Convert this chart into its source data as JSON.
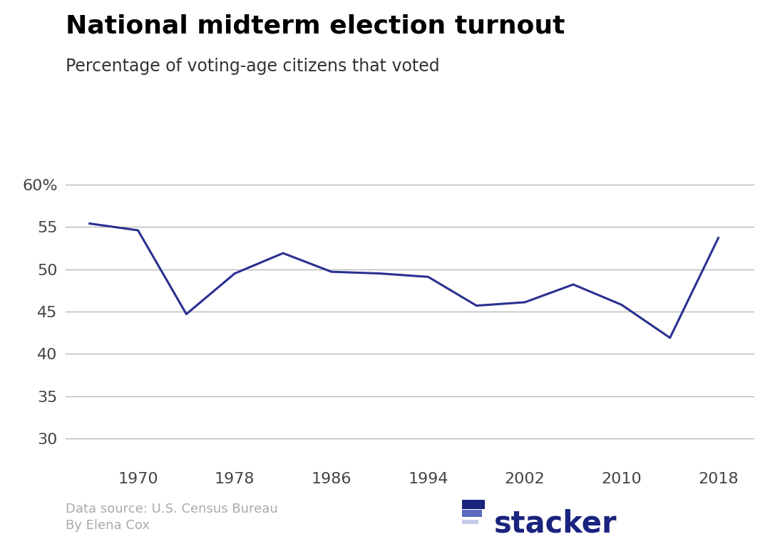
{
  "title": "National midterm election turnout",
  "subtitle": "Percentage of voting-age citizens that voted",
  "years": [
    1966,
    1970,
    1974,
    1978,
    1982,
    1986,
    1990,
    1994,
    1998,
    2002,
    2006,
    2010,
    2014,
    2018
  ],
  "turnout": [
    55.4,
    54.6,
    44.7,
    49.5,
    51.9,
    49.7,
    49.5,
    49.1,
    45.7,
    46.1,
    48.2,
    45.8,
    41.9,
    53.7
  ],
  "line_color": "#2a3090",
  "line_width": 2.2,
  "grid_color": "#aaaaaa",
  "background_color": "#ffffff",
  "title_fontsize": 26,
  "subtitle_fontsize": 17,
  "tick_fontsize": 16,
  "xtick_labels": [
    "1970",
    "1978",
    "1986",
    "1994",
    "2002",
    "2010",
    "2018"
  ],
  "xtick_positions": [
    1970,
    1978,
    1986,
    1994,
    2002,
    2010,
    2018
  ],
  "ytick_labels": [
    "60%",
    "55",
    "50",
    "45",
    "40",
    "35",
    "30"
  ],
  "ytick_positions": [
    60,
    55,
    50,
    45,
    40,
    35,
    30
  ],
  "ylim": [
    27,
    63
  ],
  "xlim": [
    1964,
    2021
  ],
  "datasource": "Data source: U.S. Census Bureau",
  "author": "By Elena Cox",
  "footer_fontsize": 13,
  "footer_color": "#aaaaaa",
  "logo_rect_colors": [
    "#1a237e",
    "#5c6bc0",
    "#c5cae9"
  ],
  "logo_text_color": "#1a237e",
  "logo_text": "stacker"
}
